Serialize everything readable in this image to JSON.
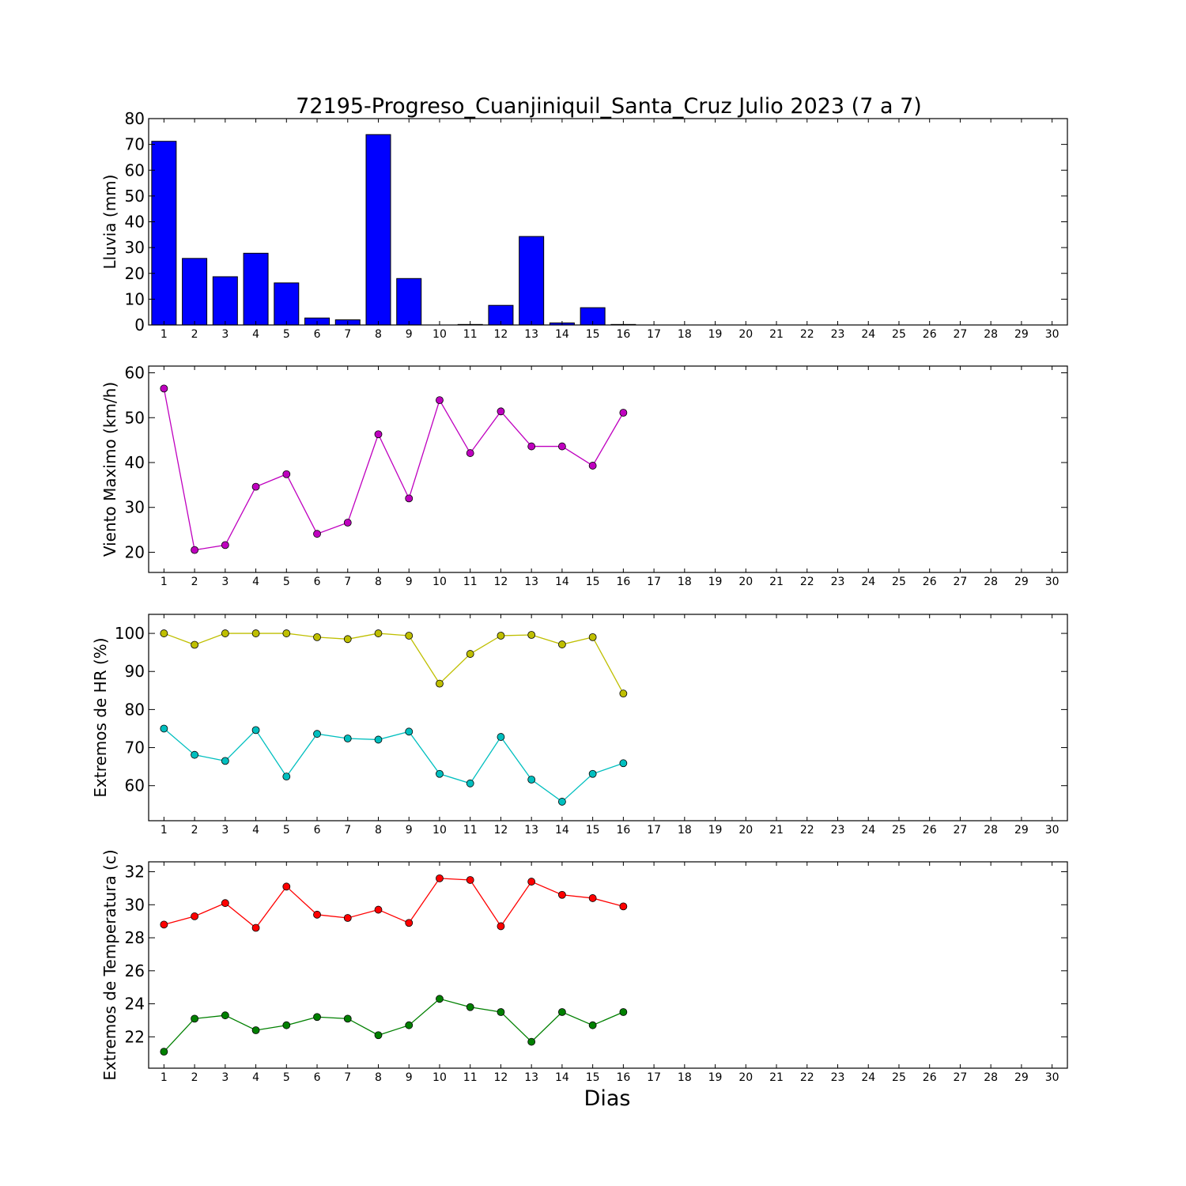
{
  "title": "72195-Progreso_Cuanjiniquil_Santa_Cruz Julio 2023  (7 a 7)",
  "xlabel": "Dias",
  "colors": {
    "bar": "#0000ff",
    "wind": "#bf00bf",
    "hr_max": "#bfbf00",
    "hr_min": "#00bfbf",
    "t_max": "#ff0000",
    "t_min": "#008000"
  },
  "chart_data": [
    {
      "type": "bar",
      "ylabel": "Lluvia (mm)",
      "x_ticks": [
        1,
        2,
        3,
        4,
        5,
        6,
        7,
        8,
        9,
        10,
        11,
        12,
        13,
        14,
        15,
        16,
        17,
        18,
        19,
        20,
        21,
        22,
        23,
        24,
        25,
        26,
        27,
        28,
        29,
        30
      ],
      "xlim": [
        0.5,
        30.5
      ],
      "ylim": [
        0,
        80
      ],
      "y_ticks": [
        0,
        10,
        20,
        30,
        40,
        50,
        60,
        70,
        80
      ],
      "categories": [
        1,
        2,
        3,
        4,
        5,
        6,
        7,
        8,
        9,
        10,
        11,
        12,
        13,
        14,
        15,
        16
      ],
      "values": [
        71.2,
        25.8,
        18.7,
        27.8,
        16.3,
        2.7,
        2.0,
        73.8,
        18.0,
        0.0,
        0.2,
        7.6,
        34.3,
        0.8,
        6.7,
        0.2
      ],
      "grid": false
    },
    {
      "type": "line",
      "ylabel": "Viento Maximo (km/h)",
      "xlim": [
        0.5,
        30.5
      ],
      "ylim": [
        15.5,
        61.5
      ],
      "y_ticks": [
        20,
        30,
        40,
        50,
        60
      ],
      "series": [
        {
          "x": [
            1,
            2,
            3,
            4,
            5,
            6,
            7,
            8,
            9,
            10,
            11,
            12,
            13,
            14,
            15,
            16
          ],
          "values": [
            56.5,
            20.5,
            21.6,
            34.6,
            37.4,
            24.1,
            26.6,
            46.3,
            32.0,
            53.9,
            42.1,
            51.4,
            43.6,
            43.6,
            39.3,
            51.1
          ]
        }
      ],
      "grid": false
    },
    {
      "type": "line",
      "ylabel": "Extremos de HR (%)",
      "xlim": [
        0.5,
        30.5
      ],
      "ylim": [
        50.8,
        105.0
      ],
      "y_ticks": [
        60,
        70,
        80,
        90,
        100
      ],
      "series": [
        {
          "x": [
            1,
            2,
            3,
            4,
            5,
            6,
            7,
            8,
            9,
            10,
            11,
            12,
            13,
            14,
            15,
            16
          ],
          "values": [
            100,
            97,
            100,
            100,
            100,
            99,
            98.5,
            100,
            99.4,
            86.8,
            94.6,
            99.4,
            99.6,
            97.1,
            99,
            84.2
          ]
        },
        {
          "x": [
            1,
            2,
            3,
            4,
            5,
            6,
            7,
            8,
            9,
            10,
            11,
            12,
            13,
            14,
            15,
            16
          ],
          "values": [
            75,
            68.1,
            66.5,
            74.6,
            62.4,
            73.6,
            72.4,
            72.1,
            74.2,
            63.1,
            60.6,
            72.8,
            61.6,
            55.8,
            63.1,
            65.9
          ]
        }
      ],
      "grid": false
    },
    {
      "type": "line",
      "ylabel": "Extremos de Temperatura (c)",
      "xlim": [
        0.5,
        30.5
      ],
      "ylim": [
        20.1,
        32.6
      ],
      "y_ticks": [
        22,
        24,
        26,
        28,
        30,
        32
      ],
      "series": [
        {
          "x": [
            1,
            2,
            3,
            4,
            5,
            6,
            7,
            8,
            9,
            10,
            11,
            12,
            13,
            14,
            15,
            16
          ],
          "values": [
            28.8,
            29.3,
            30.1,
            28.6,
            31.1,
            29.4,
            29.2,
            29.7,
            28.9,
            31.6,
            31.5,
            28.7,
            31.4,
            30.6,
            30.4,
            29.9
          ]
        },
        {
          "x": [
            1,
            2,
            3,
            4,
            5,
            6,
            7,
            8,
            9,
            10,
            11,
            12,
            13,
            14,
            15,
            16
          ],
          "values": [
            21.1,
            23.1,
            23.3,
            22.4,
            22.7,
            23.2,
            23.1,
            22.1,
            22.7,
            24.3,
            23.8,
            23.5,
            21.7,
            23.5,
            22.7,
            23.5
          ]
        }
      ],
      "grid": false
    }
  ]
}
